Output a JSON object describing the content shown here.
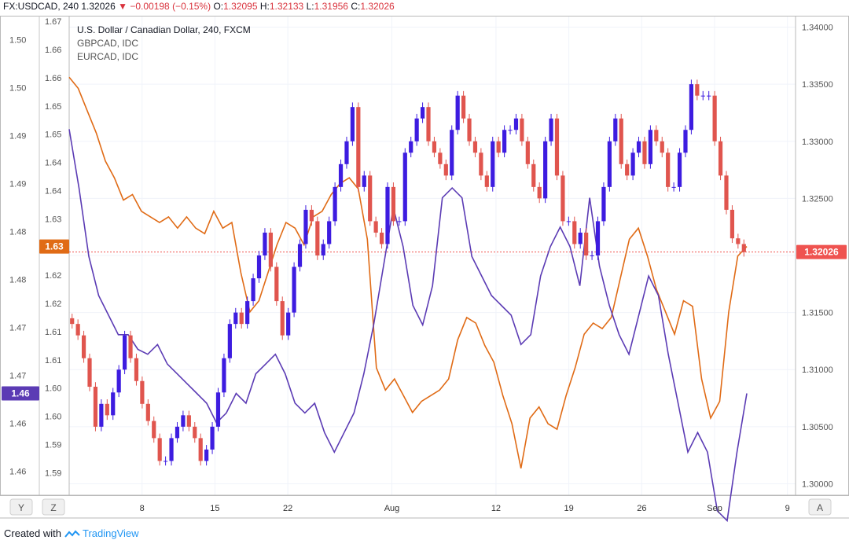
{
  "header": {
    "symbol": "FX:USDCAD, 240",
    "last": "1.32026",
    "change": "−0.00198 (−0.15%)",
    "o_label": "O:",
    "o_value": "1.32095",
    "h_label": "H:",
    "h_value": "1.32133",
    "l_label": "L:",
    "l_value": "1.31956",
    "c_label": "C:",
    "c_value": "1.32026"
  },
  "legend": {
    "main": "U.S. Dollar / Canadian Dollar, 240, FXCM",
    "s1": "GBPCAD, IDC",
    "s2": "EURCAD, IDC"
  },
  "badges": {
    "usdcad": "1.32026",
    "gbp": "1.63",
    "eur": "1.46"
  },
  "buttons": {
    "y": "Y",
    "z": "Z",
    "a": "A"
  },
  "footer": {
    "created": "Created with",
    "brand": "TradingView"
  },
  "colors": {
    "up": "#3d1ce0",
    "down": "#e0554e",
    "gbp": "#e06b16",
    "eur": "#5b3bb4",
    "last": "#ef5350"
  },
  "chart_data": {
    "type": "line",
    "title": "U.S. Dollar / Canadian Dollar, 240, FXCM",
    "x_range": [
      1,
      67
    ],
    "x_ticks": [
      {
        "x": 8,
        "label": "8"
      },
      {
        "x": 15,
        "label": "15"
      },
      {
        "x": 22,
        "label": "22"
      },
      {
        "x": 32,
        "label": "Aug"
      },
      {
        "x": 42,
        "label": "12"
      },
      {
        "x": 49,
        "label": "19"
      },
      {
        "x": 56,
        "label": "26"
      },
      {
        "x": 63,
        "label": "Sep"
      },
      {
        "x": 70,
        "label": "9"
      }
    ],
    "right_axis": {
      "ylim": [
        1.299,
        1.341
      ],
      "ticks": [
        "1.34000",
        "1.33500",
        "1.33000",
        "1.32500",
        "1.32000",
        "1.31500",
        "1.31000",
        "1.30500",
        "1.30000"
      ]
    },
    "left_axis_eur": {
      "ylim": [
        1.4556,
        1.5046
      ],
      "ticks": [
        "1.50",
        "1.50",
        "1.49",
        "1.49",
        "1.48",
        "1.48",
        "1.47",
        "1.47",
        "1.46",
        "1.46"
      ]
    },
    "left_axis_gbp": {
      "ylim": [
        1.5872,
        1.673
      ],
      "ticks": [
        "1.67",
        "1.66",
        "1.66",
        "1.65",
        "1.65",
        "1.64",
        "1.64",
        "1.63",
        "1.63",
        "1.62",
        "1.62",
        "1.61",
        "1.61",
        "1.60",
        "1.60",
        "1.59",
        "1.59"
      ]
    },
    "series": [
      {
        "name": "USDCAD",
        "kind": "candlestick",
        "axis": "right",
        "close": [
          1.314,
          1.313,
          1.311,
          1.3085,
          1.305,
          1.307,
          1.306,
          1.308,
          1.31,
          1.313,
          1.311,
          1.309,
          1.307,
          1.3055,
          1.304,
          1.302,
          1.302,
          1.304,
          1.305,
          1.306,
          1.305,
          1.304,
          1.302,
          1.303,
          1.305,
          1.308,
          1.311,
          1.314,
          1.315,
          1.314,
          1.316,
          1.318,
          1.32,
          1.322,
          1.319,
          1.316,
          1.313,
          1.315,
          1.319,
          1.321,
          1.324,
          1.323,
          1.32,
          1.321,
          1.323,
          1.326,
          1.328,
          1.33,
          1.333,
          1.326,
          1.327,
          1.323,
          1.322,
          1.321,
          1.326,
          1.323,
          1.323,
          1.329,
          1.33,
          1.332,
          1.333,
          1.33,
          1.329,
          1.328,
          1.327,
          1.331,
          1.334,
          1.332,
          1.33,
          1.329,
          1.327,
          1.326,
          1.33,
          1.329,
          1.331,
          1.331,
          1.332,
          1.33,
          1.328,
          1.326,
          1.325,
          1.33,
          1.332,
          1.327,
          1.323,
          1.323,
          1.321,
          1.322,
          1.32,
          1.32,
          1.323,
          1.326,
          1.33,
          1.332,
          1.328,
          1.327,
          1.329,
          1.33,
          1.328,
          1.331,
          1.33,
          1.329,
          1.326,
          1.326,
          1.329,
          1.331,
          1.335,
          1.334,
          1.334,
          1.334,
          1.33,
          1.327,
          1.324,
          1.3215,
          1.321,
          1.3203
        ]
      },
      {
        "name": "GBPCAD",
        "kind": "line",
        "axis": "left",
        "color": "#e06b16",
        "values": [
          1.662,
          1.66,
          1.656,
          1.652,
          1.647,
          1.644,
          1.64,
          1.641,
          1.638,
          1.637,
          1.636,
          1.637,
          1.635,
          1.637,
          1.635,
          1.634,
          1.638,
          1.635,
          1.636,
          1.627,
          1.62,
          1.622,
          1.627,
          1.632,
          1.636,
          1.635,
          1.632,
          1.637,
          1.638,
          1.641,
          1.643,
          1.644,
          1.642,
          1.633,
          1.61,
          1.606,
          1.608,
          1.605,
          1.602,
          1.604,
          1.605,
          1.606,
          1.608,
          1.615,
          1.619,
          1.618,
          1.614,
          1.611,
          1.605,
          1.6,
          1.592,
          1.601,
          1.603,
          1.6,
          1.599,
          1.605,
          1.61,
          1.616,
          1.618,
          1.617,
          1.619,
          1.626,
          1.633,
          1.635,
          1.63,
          1.624,
          1.62,
          1.616,
          1.622,
          1.621,
          1.608,
          1.601,
          1.604,
          1.62,
          1.63,
          1.6317
        ]
      },
      {
        "name": "EURCAD",
        "kind": "line",
        "axis": "left",
        "color": "#5b3bb4",
        "values": [
          1.493,
          1.487,
          1.48,
          1.476,
          1.474,
          1.472,
          1.472,
          1.4705,
          1.47,
          1.471,
          1.469,
          1.468,
          1.467,
          1.466,
          1.465,
          1.463,
          1.464,
          1.466,
          1.465,
          1.468,
          1.469,
          1.47,
          1.468,
          1.465,
          1.464,
          1.465,
          1.462,
          1.46,
          1.462,
          1.464,
          1.468,
          1.473,
          1.479,
          1.485,
          1.481,
          1.475,
          1.473,
          1.477,
          1.486,
          1.487,
          1.486,
          1.48,
          1.478,
          1.476,
          1.475,
          1.474,
          1.471,
          1.472,
          1.478,
          1.481,
          1.483,
          1.481,
          1.477,
          1.486,
          1.479,
          1.475,
          1.472,
          1.47,
          1.474,
          1.478,
          1.476,
          1.47,
          1.465,
          1.46,
          1.462,
          1.46,
          1.454,
          1.453,
          1.46,
          1.466
        ]
      }
    ]
  }
}
